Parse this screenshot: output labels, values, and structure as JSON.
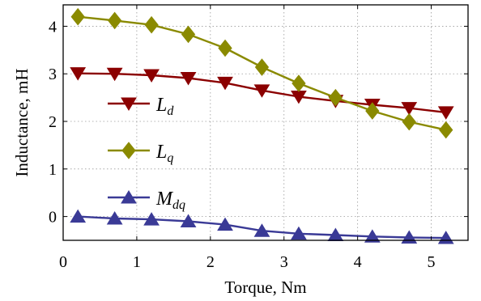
{
  "chart_data": {
    "type": "line",
    "xlabel": "Torque, Nm",
    "ylabel": "Inductance, mH",
    "xlim": [
      0,
      5.5
    ],
    "ylim": [
      -0.5,
      4.45
    ],
    "xticks": [
      0,
      1,
      2,
      3,
      4,
      5
    ],
    "yticks": [
      0,
      1,
      2,
      3,
      4
    ],
    "grid": true,
    "legend_position": "left-center",
    "x": [
      0.2,
      0.7,
      1.2,
      1.7,
      2.2,
      2.7,
      3.2,
      3.7,
      4.2,
      4.7,
      5.2
    ],
    "series": [
      {
        "name": "L",
        "subscript": "d",
        "color": "#8b0000",
        "marker": "triangle-down",
        "values": [
          3.01,
          3.0,
          2.97,
          2.91,
          2.81,
          2.65,
          2.52,
          2.43,
          2.35,
          2.28,
          2.19
        ]
      },
      {
        "name": "L",
        "subscript": "q",
        "color": "#8a8a00",
        "marker": "diamond",
        "values": [
          4.2,
          4.12,
          4.03,
          3.83,
          3.54,
          3.14,
          2.8,
          2.5,
          2.22,
          1.99,
          1.82
        ]
      },
      {
        "name": "M",
        "subscript": "dq",
        "color": "#3a3a96",
        "marker": "triangle-up",
        "values": [
          0.0,
          -0.04,
          -0.06,
          -0.1,
          -0.17,
          -0.3,
          -0.36,
          -0.39,
          -0.42,
          -0.44,
          -0.45
        ]
      }
    ]
  }
}
